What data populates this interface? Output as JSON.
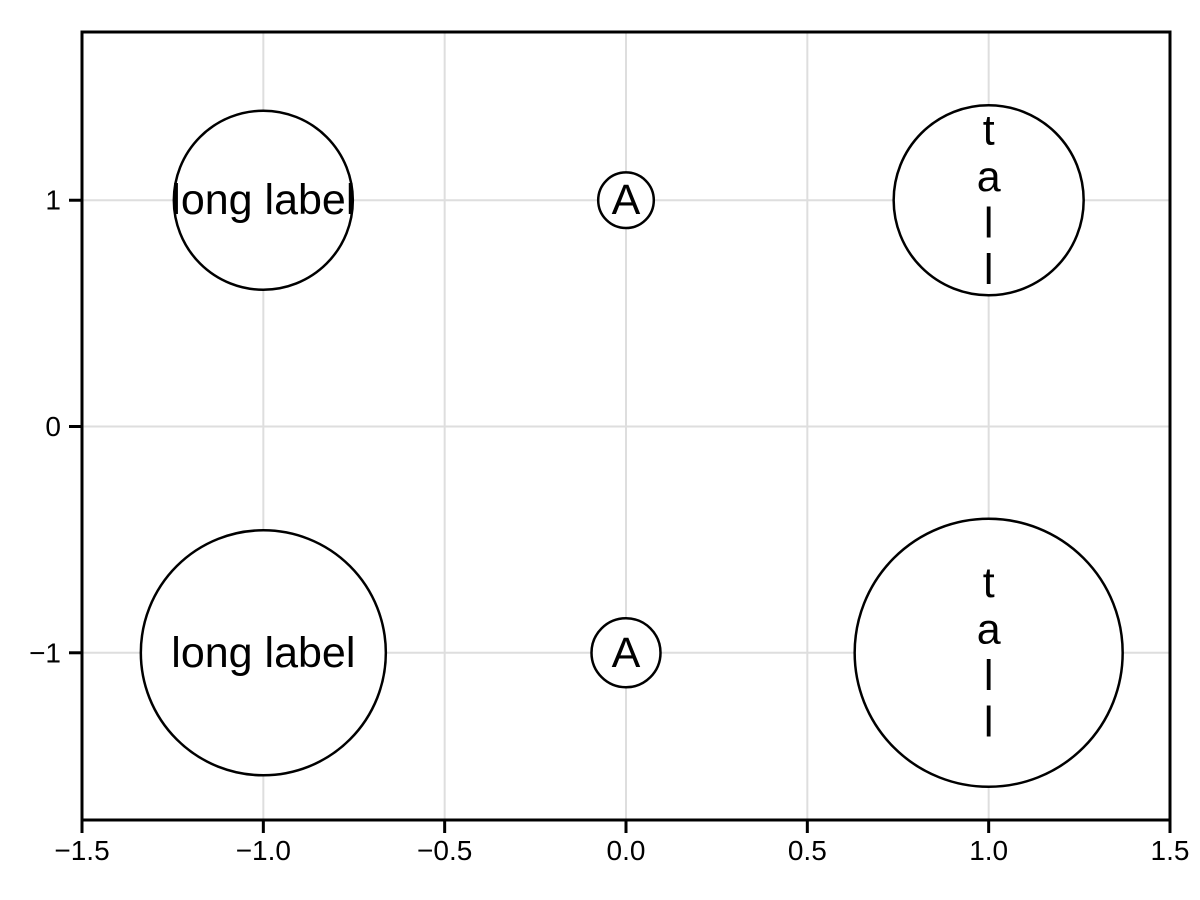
{
  "chart_data": {
    "type": "scatter",
    "title": "",
    "xlabel": "",
    "ylabel": "",
    "xlim": [
      -1.5,
      1.5
    ],
    "ylim": [
      -1.739,
      1.7435
    ],
    "grid": true,
    "legend": null,
    "x_ticks": [
      {
        "value": -1.5,
        "label": "−1.5"
      },
      {
        "value": -1.0,
        "label": "−1.0"
      },
      {
        "value": -0.5,
        "label": "−0.5"
      },
      {
        "value": 0.0,
        "label": "0.0"
      },
      {
        "value": 0.5,
        "label": "0.5"
      },
      {
        "value": 1.0,
        "label": "1.0"
      },
      {
        "value": 1.5,
        "label": "1.5"
      }
    ],
    "y_ticks": [
      {
        "value": 1,
        "label": "1"
      },
      {
        "value": 0,
        "label": "0"
      },
      {
        "value": -1,
        "label": "−1"
      }
    ],
    "points": [
      {
        "x": -1,
        "y": 1,
        "label": "long label",
        "orientation": "horizontal",
        "marker_radius_px": 89.5
      },
      {
        "x": 0,
        "y": 1,
        "label": "A",
        "orientation": "horizontal",
        "marker_radius_px": 27.8
      },
      {
        "x": 1,
        "y": 1,
        "label": "tall",
        "orientation": "vertical",
        "marker_radius_px": 95
      },
      {
        "x": -1,
        "y": -1,
        "label": "long label",
        "orientation": "horizontal",
        "marker_radius_px": 122.5
      },
      {
        "x": 0,
        "y": -1,
        "label": "A",
        "orientation": "horizontal",
        "marker_radius_px": 34.5
      },
      {
        "x": 1,
        "y": -1,
        "label": "tall",
        "orientation": "vertical",
        "marker_radius_px": 134
      }
    ],
    "colors": {
      "background": "#ffffff",
      "grid": "#dedede",
      "spine": "#000000",
      "tick": "#000000",
      "tick_text": "#000000",
      "marker_stroke": "#000000",
      "marker_fill": "#ffffff",
      "marker_text": "#000000"
    }
  }
}
